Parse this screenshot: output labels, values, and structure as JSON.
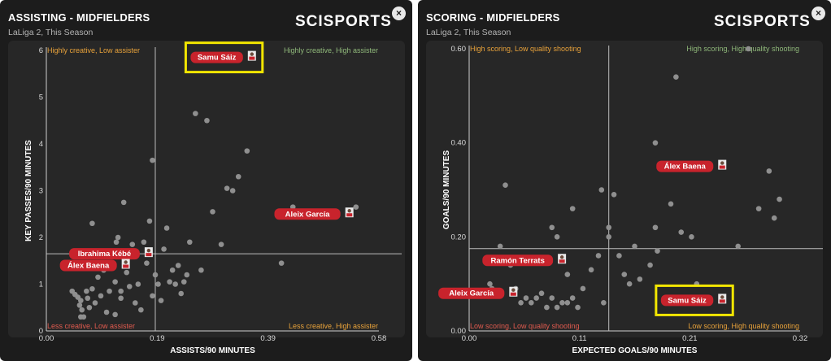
{
  "logo_text": "SCISPORTS",
  "close_icon": "×",
  "colors": {
    "panel_bg": "#1c1c1c",
    "plot_bg": "#272727",
    "point": "#8f8f8f",
    "label_bg": "#c8232c",
    "highlight": "#f2e600",
    "quad_orange": "#e8a23a",
    "quad_green": "#8fb87a",
    "quad_red": "#e05a4e"
  },
  "panels": [
    {
      "title": "ASSISTING - MIDFIELDERS",
      "subtitle": "LaLiga 2, This Season",
      "quadrants": {
        "top_left": "Highly creative, Low assister",
        "top_right": "Highly creative, High assister",
        "bottom_left": "Less creative, Low assister",
        "bottom_right": "Less creative, High assister"
      }
    },
    {
      "title": "SCORING - MIDFIELDERS",
      "subtitle": "LaLiga 2, This Season",
      "quadrants": {
        "top_left": "High scoring, Low quality shooting",
        "top_right": "High scoring, High quality shooting",
        "bottom_left": "Low scoring, Low quality shooting",
        "bottom_right": "Low scoring, High quality shooting"
      }
    }
  ],
  "chart_data": [
    {
      "type": "scatter",
      "title": "ASSISTING - MIDFIELDERS",
      "xlabel": "ASSISTS/90 MINUTES",
      "ylabel": "KEY PASSES/90 MINUTES",
      "xlim": [
        0,
        0.58
      ],
      "ylim": [
        0,
        6
      ],
      "xticks": [
        "0.00",
        "0.19",
        "0.39",
        "0.58"
      ],
      "yticks": [
        "0",
        "1",
        "2",
        "3",
        "4",
        "5",
        "6"
      ],
      "x_ref": 0.19,
      "y_ref": 1.65,
      "points": [
        [
          0.045,
          0.85
        ],
        [
          0.05,
          0.78
        ],
        [
          0.055,
          0.72
        ],
        [
          0.06,
          0.65
        ],
        [
          0.058,
          0.55
        ],
        [
          0.062,
          0.45
        ],
        [
          0.065,
          0.3
        ],
        [
          0.07,
          0.85
        ],
        [
          0.072,
          0.7
        ],
        [
          0.075,
          0.5
        ],
        [
          0.08,
          0.9
        ],
        [
          0.085,
          0.6
        ],
        [
          0.09,
          1.15
        ],
        [
          0.095,
          0.75
        ],
        [
          0.1,
          1.3
        ],
        [
          0.105,
          0.4
        ],
        [
          0.11,
          0.85
        ],
        [
          0.115,
          1.38
        ],
        [
          0.12,
          1.05
        ],
        [
          0.122,
          1.9
        ],
        [
          0.125,
          2.0
        ],
        [
          0.13,
          0.7
        ],
        [
          0.135,
          2.75
        ],
        [
          0.14,
          1.25
        ],
        [
          0.145,
          0.95
        ],
        [
          0.15,
          1.85
        ],
        [
          0.155,
          0.6
        ],
        [
          0.16,
          1.0
        ],
        [
          0.165,
          0.45
        ],
        [
          0.17,
          1.9
        ],
        [
          0.175,
          1.45
        ],
        [
          0.18,
          2.35
        ],
        [
          0.185,
          3.65
        ],
        [
          0.19,
          1.2
        ],
        [
          0.195,
          1.0
        ],
        [
          0.2,
          0.65
        ],
        [
          0.205,
          1.75
        ],
        [
          0.21,
          2.2
        ],
        [
          0.215,
          1.05
        ],
        [
          0.22,
          1.3
        ],
        [
          0.225,
          1.0
        ],
        [
          0.23,
          1.4
        ],
        [
          0.235,
          0.8
        ],
        [
          0.24,
          1.05
        ],
        [
          0.245,
          1.2
        ],
        [
          0.25,
          1.9
        ],
        [
          0.26,
          4.65
        ],
        [
          0.27,
          1.3
        ],
        [
          0.28,
          4.5
        ],
        [
          0.29,
          2.55
        ],
        [
          0.305,
          1.85
        ],
        [
          0.315,
          3.05
        ],
        [
          0.325,
          3.0
        ],
        [
          0.335,
          3.3
        ],
        [
          0.35,
          3.85
        ],
        [
          0.41,
          1.45
        ],
        [
          0.43,
          2.65
        ],
        [
          0.54,
          2.65
        ],
        [
          0.08,
          2.3
        ],
        [
          0.06,
          0.3
        ],
        [
          0.12,
          0.35
        ],
        [
          0.185,
          0.75
        ],
        [
          0.13,
          0.85
        ]
      ],
      "labeled_players": [
        {
          "name": "Samu Sáiz",
          "x": 0.35,
          "y": 5.85,
          "highlight": true
        },
        {
          "name": "Aleix García",
          "x": 0.52,
          "y": 2.5,
          "highlight": false
        },
        {
          "name": "Ibrahima Kébé",
          "x": 0.17,
          "y": 1.65,
          "highlight": false
        },
        {
          "name": "Álex Baena",
          "x": 0.13,
          "y": 1.4,
          "highlight": false
        }
      ]
    },
    {
      "type": "scatter",
      "title": "SCORING - MIDFIELDERS",
      "xlabel": "EXPECTED GOALS/90 MINUTES",
      "ylabel": "GOALS/90 MINUTES",
      "xlim": [
        0,
        0.32
      ],
      "ylim": [
        0,
        0.6
      ],
      "xticks": [
        "0.00",
        "0.11",
        "0.21",
        "0.32"
      ],
      "yticks": [
        "0.00",
        "0.20",
        "0.40",
        "0.60"
      ],
      "x_ref": 0.135,
      "y_ref": 0.175,
      "points": [
        [
          0.02,
          0.1
        ],
        [
          0.022,
          0.09
        ],
        [
          0.03,
          0.18
        ],
        [
          0.035,
          0.31
        ],
        [
          0.04,
          0.14
        ],
        [
          0.045,
          0.09
        ],
        [
          0.05,
          0.06
        ],
        [
          0.055,
          0.07
        ],
        [
          0.06,
          0.06
        ],
        [
          0.065,
          0.07
        ],
        [
          0.07,
          0.08
        ],
        [
          0.075,
          0.05
        ],
        [
          0.08,
          0.07
        ],
        [
          0.085,
          0.05
        ],
        [
          0.09,
          0.06
        ],
        [
          0.095,
          0.06
        ],
        [
          0.08,
          0.22
        ],
        [
          0.085,
          0.2
        ],
        [
          0.095,
          0.12
        ],
        [
          0.1,
          0.26
        ],
        [
          0.1,
          0.07
        ],
        [
          0.105,
          0.05
        ],
        [
          0.11,
          0.09
        ],
        [
          0.118,
          0.13
        ],
        [
          0.125,
          0.16
        ],
        [
          0.128,
          0.3
        ],
        [
          0.13,
          0.06
        ],
        [
          0.135,
          0.2
        ],
        [
          0.135,
          0.22
        ],
        [
          0.14,
          0.29
        ],
        [
          0.145,
          0.16
        ],
        [
          0.15,
          0.12
        ],
        [
          0.155,
          0.1
        ],
        [
          0.16,
          0.18
        ],
        [
          0.165,
          0.11
        ],
        [
          0.175,
          0.14
        ],
        [
          0.18,
          0.4
        ],
        [
          0.18,
          0.22
        ],
        [
          0.182,
          0.17
        ],
        [
          0.195,
          0.27
        ],
        [
          0.2,
          0.54
        ],
        [
          0.205,
          0.21
        ],
        [
          0.21,
          0.06
        ],
        [
          0.215,
          0.2
        ],
        [
          0.22,
          0.1
        ],
        [
          0.23,
          0.06
        ],
        [
          0.26,
          0.18
        ],
        [
          0.28,
          0.26
        ],
        [
          0.29,
          0.34
        ],
        [
          0.295,
          0.24
        ],
        [
          0.3,
          0.28
        ],
        [
          0.27,
          0.6
        ]
      ],
      "labeled_players": [
        {
          "name": "Álex Baena",
          "x": 0.24,
          "y": 0.35,
          "highlight": false
        },
        {
          "name": "Ramón Terrats",
          "x": 0.085,
          "y": 0.15,
          "highlight": false
        },
        {
          "name": "Aleix García",
          "x": 0.038,
          "y": 0.08,
          "highlight": false
        },
        {
          "name": "Samu Sáiz",
          "x": 0.24,
          "y": 0.065,
          "highlight": true
        }
      ]
    }
  ]
}
